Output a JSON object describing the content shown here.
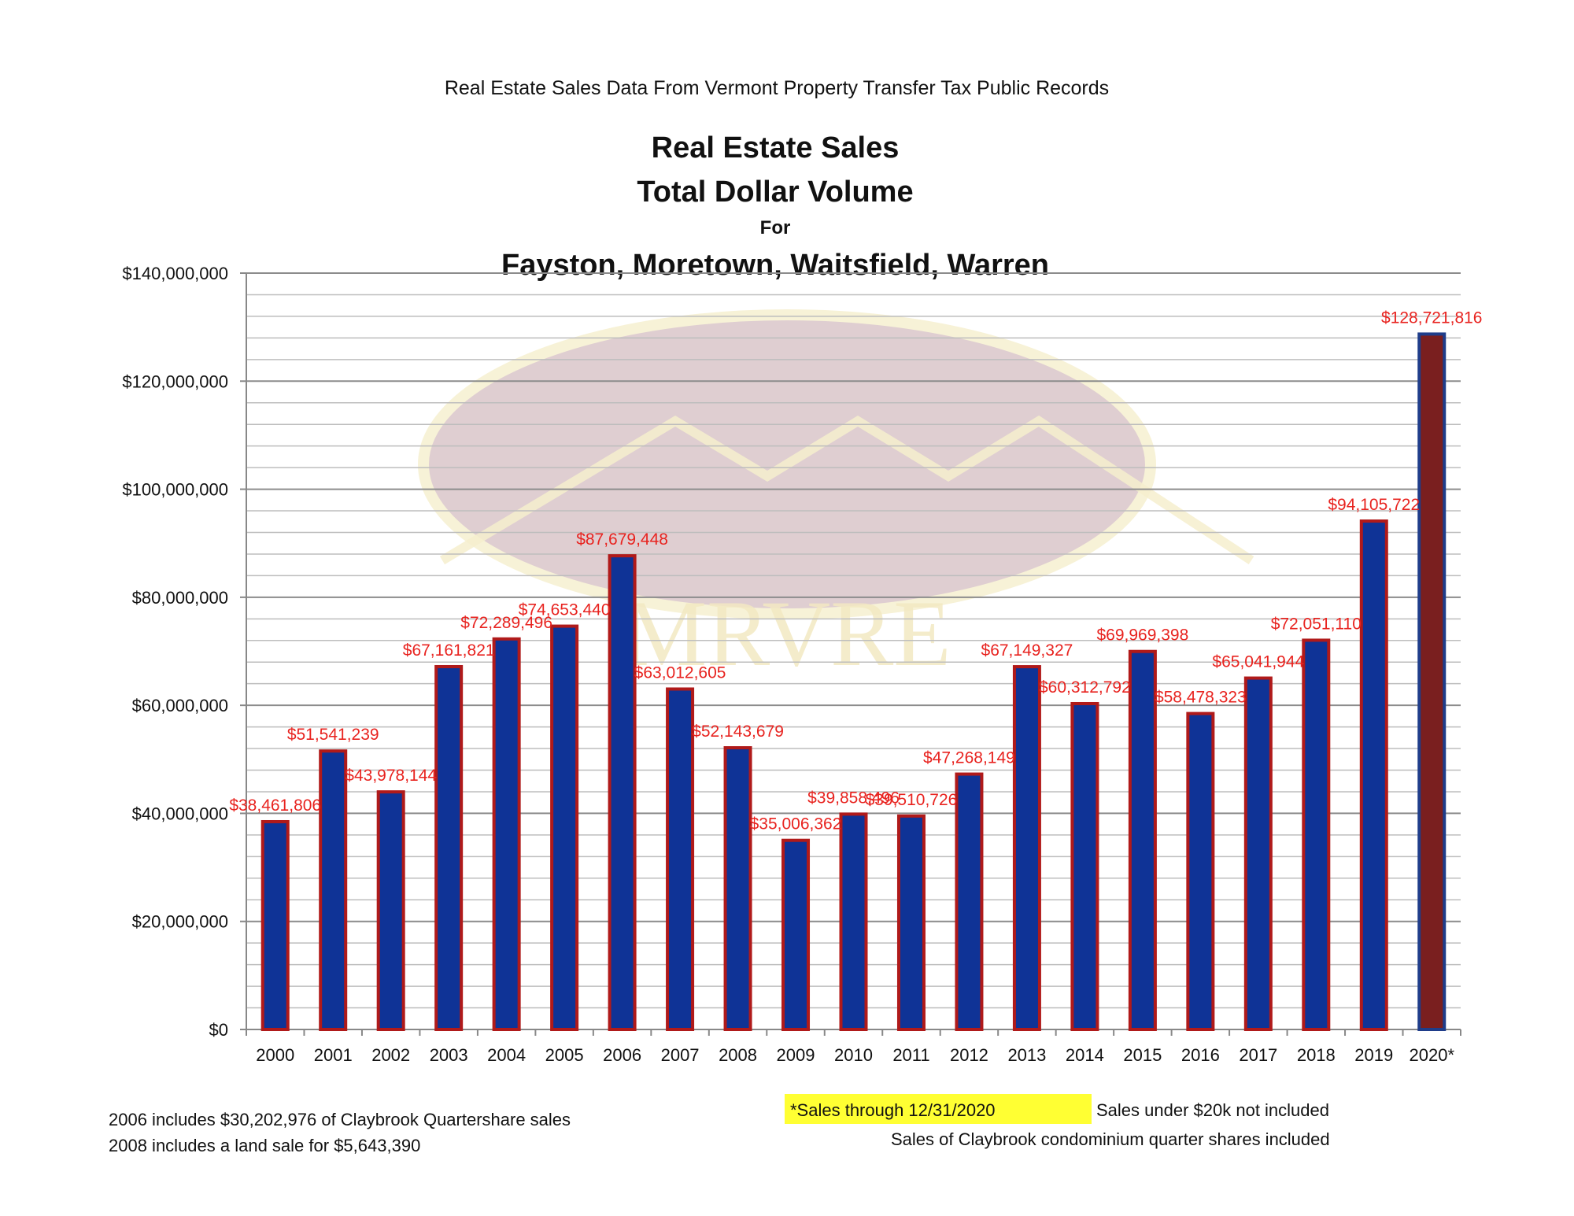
{
  "header": {
    "subtitle": "Real Estate Sales Data From Vermont Property Transfer Tax Public Records",
    "title_line1": "Real Estate Sales",
    "title_line2": "Total Dollar Volume",
    "title_line3": "For",
    "title_line4": "Fayston, Moretown, Waitsfield, Warren"
  },
  "watermark": {
    "text": "MRVRE"
  },
  "notes": {
    "left_line1": "2006 includes $30,202,976 of Claybrook Quartershare sales",
    "left_line2": "2008 includes a land sale for $5,643,390",
    "highlight": "*Sales through 12/31/2020",
    "right_line1": "Sales under $20k not included",
    "right_line2": "Sales of Claybrook condominium quarter shares included"
  },
  "colors": {
    "bar_fill": "#0f3396",
    "bar_border": "#b01a1a",
    "last_bar_fill": "#7a1f1f",
    "last_bar_border": "#1f3d8a",
    "label_color": "#e8231f",
    "highlight": "#ffff33"
  },
  "chart_data": {
    "type": "bar",
    "categories": [
      "2000",
      "2001",
      "2002",
      "2003",
      "2004",
      "2005",
      "2006",
      "2007",
      "2008",
      "2009",
      "2010",
      "2011",
      "2012",
      "2013",
      "2014",
      "2015",
      "2016",
      "2017",
      "2018",
      "2019",
      "2020*"
    ],
    "values": [
      38461806,
      51541239,
      43978144,
      67161821,
      72289496,
      74653440,
      87679448,
      63012605,
      52143679,
      35006362,
      39858496,
      39510726,
      47268149,
      67149327,
      60312792,
      69969398,
      58478323,
      65041944,
      72051110,
      94105722,
      128721816
    ],
    "data_labels": [
      "$38,461,806",
      "$51,541,239",
      "$43,978,144",
      "$67,161,821",
      "$72,289,496",
      "$74,653,440",
      "$87,679,448",
      "$63,012,605",
      "$52,143,679",
      "$35,006,362",
      "$39,858,496",
      "$39,510,726",
      "$47,268,149",
      "$67,149,327",
      "$60,312,792",
      "$69,969,398",
      "$58,478,323",
      "$65,041,944",
      "$72,051,110",
      "$94,105,722",
      "$128,721,816"
    ],
    "y_ticks": [
      "$0",
      "$20,000,000",
      "$40,000,000",
      "$60,000,000",
      "$80,000,000",
      "$100,000,000",
      "$120,000,000",
      "$140,000,000"
    ],
    "ylim": [
      0,
      140000000
    ],
    "y_major_step": 20000000,
    "y_minor_step": 4000000,
    "grid": true,
    "legend": "none",
    "xlabel": "",
    "ylabel": ""
  }
}
